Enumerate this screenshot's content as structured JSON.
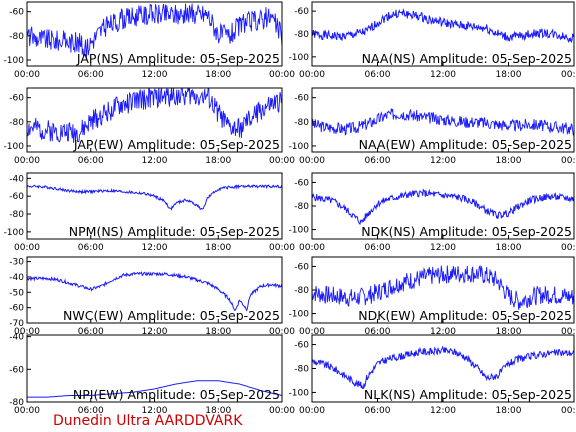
{
  "footer": "Dunedin Ultra AARDDVARK",
  "colors": {
    "trace": "#1a1aff",
    "frame": "#000000",
    "footer": "#cc0000",
    "background": "#ffffff"
  },
  "chart_data": [
    {
      "type": "line",
      "title": "JAP(NS) Amplitude: 05-Sep-2025",
      "x_ticks": [
        "00:00",
        "06:00",
        "12:00",
        "18:00",
        "00:00"
      ],
      "xlim": [
        0,
        24
      ],
      "y_ticks": [
        -100,
        -80,
        -60
      ],
      "ylim": [
        -105,
        -52
      ],
      "noise": 9,
      "grid": false,
      "series": [
        {
          "x": [
            0,
            1,
            2,
            3,
            4,
            5,
            5.5,
            6,
            7,
            8,
            9,
            10,
            11,
            12,
            13,
            14,
            15,
            16,
            17,
            17.5,
            18,
            19,
            20,
            21,
            22,
            23,
            24
          ],
          "y": [
            -80,
            -82,
            -83,
            -84,
            -85,
            -86,
            -92,
            -85,
            -75,
            -70,
            -66,
            -64,
            -63,
            -62,
            -62,
            -62,
            -62,
            -62,
            -62,
            -70,
            -78,
            -80,
            -72,
            -68,
            -66,
            -64,
            -80
          ]
        }
      ]
    },
    {
      "type": "line",
      "title": "NAA(NS) Amplitude: 05-Sep-2025",
      "x_ticks": [
        "00:00",
        "06:00",
        "12:00",
        "18:00",
        "00:00"
      ],
      "xlim": [
        0,
        24
      ],
      "y_ticks": [
        -100,
        -80,
        -60
      ],
      "ylim": [
        -108,
        -52
      ],
      "noise": 4,
      "grid": false,
      "series": [
        {
          "x": [
            0,
            1,
            2,
            3,
            4,
            5,
            6,
            7,
            8,
            9,
            10,
            11,
            12,
            13,
            14,
            15,
            16,
            17,
            18,
            19,
            20,
            21,
            22,
            23,
            24
          ],
          "y": [
            -80,
            -81,
            -82,
            -82,
            -80,
            -78,
            -70,
            -64,
            -62,
            -63,
            -65,
            -68,
            -70,
            -72,
            -73,
            -74,
            -75,
            -80,
            -83,
            -82,
            -80,
            -79,
            -80,
            -82,
            -84
          ]
        }
      ]
    },
    {
      "type": "line",
      "title": "JAP(EW) Amplitude: 05-Sep-2025",
      "x_ticks": [
        "00:00",
        "06:00",
        "12:00",
        "18:00",
        "00:00"
      ],
      "xlim": [
        0,
        24
      ],
      "y_ticks": [
        -100,
        -80,
        -60
      ],
      "ylim": [
        -105,
        -52
      ],
      "noise": 9,
      "grid": false,
      "series": [
        {
          "x": [
            0,
            1,
            2,
            3,
            4,
            5,
            6,
            7,
            8,
            9,
            10,
            11,
            12,
            13,
            14,
            15,
            16,
            17,
            18,
            19,
            20,
            21,
            22,
            23,
            24
          ],
          "y": [
            -85,
            -86,
            -87,
            -88,
            -88,
            -89,
            -80,
            -74,
            -70,
            -66,
            -63,
            -61,
            -60,
            -59,
            -58,
            -58,
            -58,
            -60,
            -72,
            -85,
            -86,
            -78,
            -70,
            -66,
            -64
          ]
        }
      ]
    },
    {
      "type": "line",
      "title": "NAA(EW) Amplitude: 05-Sep-2025",
      "x_ticks": [
        "00:00",
        "06:00",
        "12:00",
        "18:00",
        "00:00"
      ],
      "xlim": [
        0,
        24
      ],
      "y_ticks": [
        -100,
        -80,
        -60
      ],
      "ylim": [
        -105,
        -52
      ],
      "noise": 5,
      "grid": false,
      "series": [
        {
          "x": [
            0,
            1,
            2,
            3,
            4,
            5,
            6,
            7,
            8,
            9,
            10,
            11,
            12,
            13,
            14,
            15,
            16,
            17,
            18,
            19,
            20,
            21,
            22,
            23,
            24
          ],
          "y": [
            -82,
            -84,
            -85,
            -86,
            -85,
            -82,
            -78,
            -74,
            -73,
            -74,
            -76,
            -77,
            -78,
            -79,
            -80,
            -80,
            -81,
            -82,
            -83,
            -83,
            -82,
            -83,
            -84,
            -85,
            -86
          ]
        }
      ]
    },
    {
      "type": "line",
      "title": "NPM(NS) Amplitude: 05-Sep-2025",
      "x_ticks": [
        "00:00",
        "06:00",
        "12:00",
        "18:00",
        "00:00"
      ],
      "xlim": [
        0,
        24
      ],
      "y_ticks": [
        -100,
        -80,
        -60,
        -40
      ],
      "ylim": [
        -108,
        -34
      ],
      "noise": 1.5,
      "grid": false,
      "series": [
        {
          "x": [
            0,
            1,
            2,
            3,
            4,
            5,
            6,
            7,
            8,
            9,
            10,
            11,
            12,
            13,
            13.5,
            14,
            15,
            16,
            16.5,
            17,
            18,
            19,
            20,
            21,
            22,
            23,
            24
          ],
          "y": [
            -49,
            -49,
            -50,
            -52,
            -54,
            -55,
            -55,
            -54,
            -54,
            -55,
            -56,
            -57,
            -60,
            -66,
            -75,
            -68,
            -64,
            -70,
            -76,
            -62,
            -52,
            -50,
            -49,
            -49,
            -49,
            -49,
            -49
          ]
        }
      ]
    },
    {
      "type": "line",
      "title": "NDK(NS) Amplitude: 05-Sep-2025",
      "x_ticks": [
        "00:00",
        "06:00",
        "12:00",
        "18:00",
        "00:00"
      ],
      "xlim": [
        0,
        24
      ],
      "y_ticks": [
        -100,
        -80,
        -60
      ],
      "ylim": [
        -108,
        -52
      ],
      "noise": 3,
      "grid": false,
      "series": [
        {
          "x": [
            0,
            1,
            2,
            3,
            4,
            4.5,
            5,
            6,
            7,
            8,
            9,
            10,
            11,
            12,
            13,
            14,
            15,
            16,
            17,
            18,
            19,
            20,
            21,
            22,
            23,
            24
          ],
          "y": [
            -72,
            -74,
            -76,
            -82,
            -90,
            -94,
            -88,
            -78,
            -74,
            -72,
            -70,
            -69,
            -70,
            -71,
            -72,
            -74,
            -78,
            -84,
            -88,
            -86,
            -80,
            -75,
            -73,
            -72,
            -73,
            -74
          ]
        }
      ]
    },
    {
      "type": "line",
      "title": "NWC(EW) Amplitude: 05-Sep-2025",
      "x_ticks": [
        "00:00",
        "06:00",
        "12:00",
        "18:00",
        "00:00"
      ],
      "xlim": [
        0,
        24
      ],
      "y_ticks": [
        -70,
        -60,
        -50,
        -40,
        -30
      ],
      "ylim": [
        -70,
        -27
      ],
      "noise": 1,
      "grid": false,
      "series": [
        {
          "x": [
            0,
            1,
            2,
            3,
            4,
            5,
            6,
            7,
            8,
            9,
            10,
            11,
            12,
            13,
            14,
            15,
            16,
            17,
            18,
            19,
            19.6,
            20,
            20.7,
            21,
            22,
            23,
            24
          ],
          "y": [
            -41,
            -41,
            -41,
            -42,
            -44,
            -46,
            -48,
            -46,
            -42,
            -39,
            -38,
            -38,
            -38,
            -38,
            -39,
            -40,
            -42,
            -44,
            -48,
            -54,
            -62,
            -55,
            -61,
            -52,
            -46,
            -45,
            -46
          ]
        }
      ]
    },
    {
      "type": "line",
      "title": "NDK(EW) Amplitude: 05-Sep-2025",
      "x_ticks": [
        "00:00",
        "06:00",
        "12:00",
        "18:00",
        "00:00"
      ],
      "xlim": [
        0,
        24
      ],
      "y_ticks": [
        -100,
        -80,
        -60
      ],
      "ylim": [
        -108,
        -52
      ],
      "noise": 8,
      "grid": false,
      "series": [
        {
          "x": [
            0,
            1,
            2,
            3,
            4,
            5,
            6,
            7,
            8,
            9,
            10,
            11,
            12,
            13,
            14,
            15,
            16,
            17,
            18,
            19,
            20,
            21,
            22,
            23,
            24
          ],
          "y": [
            -82,
            -84,
            -85,
            -86,
            -87,
            -85,
            -82,
            -78,
            -74,
            -72,
            -70,
            -68,
            -67,
            -66,
            -66,
            -66,
            -68,
            -72,
            -85,
            -90,
            -86,
            -84,
            -84,
            -85,
            -86
          ]
        }
      ]
    },
    {
      "type": "line",
      "title": "NPI(EW) Amplitude: 05-Sep-2025",
      "x_ticks": [
        "00:00",
        "06:00",
        "12:00",
        "18:00",
        "00:00"
      ],
      "xlim": [
        0,
        24
      ],
      "y_ticks": [
        -80,
        -60,
        -40
      ],
      "ylim": [
        -80,
        -39
      ],
      "noise": 0,
      "grid": false,
      "series": [
        {
          "x": [
            0,
            2,
            4,
            6,
            8,
            10,
            12,
            14,
            16,
            18,
            20,
            22,
            24
          ],
          "y": [
            -77,
            -77,
            -76,
            -76,
            -75,
            -74,
            -72,
            -69,
            -67,
            -67,
            -69,
            -73,
            -76
          ]
        }
      ]
    },
    {
      "type": "line",
      "title": "NLK(NS) Amplitude: 05-Sep-2025",
      "x_ticks": [
        "00:00",
        "06:00",
        "12:00",
        "18:00",
        "00:00"
      ],
      "xlim": [
        0,
        24
      ],
      "y_ticks": [
        -100,
        -80,
        -60
      ],
      "ylim": [
        -108,
        -52
      ],
      "noise": 3,
      "grid": false,
      "series": [
        {
          "x": [
            0,
            1,
            2,
            3,
            4,
            4.7,
            5,
            6,
            7,
            8,
            9,
            10,
            11,
            12,
            13,
            14,
            15,
            16,
            17,
            18,
            19,
            20,
            21,
            22,
            23,
            24
          ],
          "y": [
            -74,
            -76,
            -80,
            -86,
            -92,
            -95,
            -88,
            -76,
            -72,
            -70,
            -68,
            -66,
            -66,
            -65,
            -66,
            -70,
            -78,
            -88,
            -86,
            -76,
            -72,
            -70,
            -68,
            -67,
            -67,
            -67
          ]
        }
      ]
    }
  ]
}
